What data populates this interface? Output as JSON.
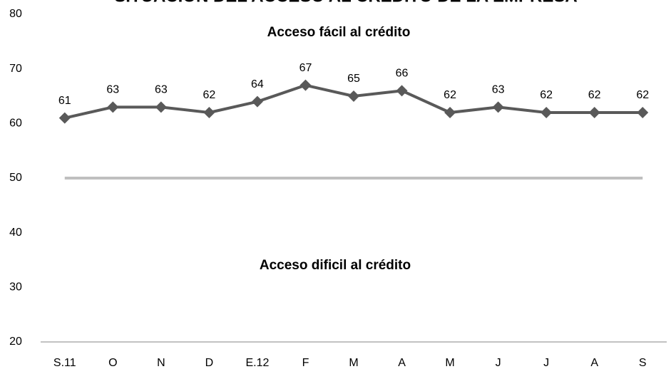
{
  "chart_data": {
    "type": "line",
    "title": "SITUACIÓN DEL ACCESO AL CRÉDITO DE LA EMPRESA",
    "annotations": [
      "Acceso fácil al crédito",
      "Acceso dificil al crédito"
    ],
    "categories": [
      "S.11",
      "O",
      "N",
      "D",
      "E.12",
      "F",
      "M",
      "A",
      "M",
      "J",
      "J",
      "A",
      "S"
    ],
    "series": [
      {
        "color": "#595959",
        "values": [
          61,
          63,
          63,
          62,
          64,
          67,
          65,
          66,
          62,
          63,
          62,
          62,
          62
        ]
      }
    ],
    "reference_line": {
      "value": 50,
      "color": "#bfbfbf"
    },
    "ylim": [
      20,
      80
    ],
    "yticks": [
      20,
      30,
      40,
      50,
      60,
      70,
      80
    ],
    "grid": false
  }
}
